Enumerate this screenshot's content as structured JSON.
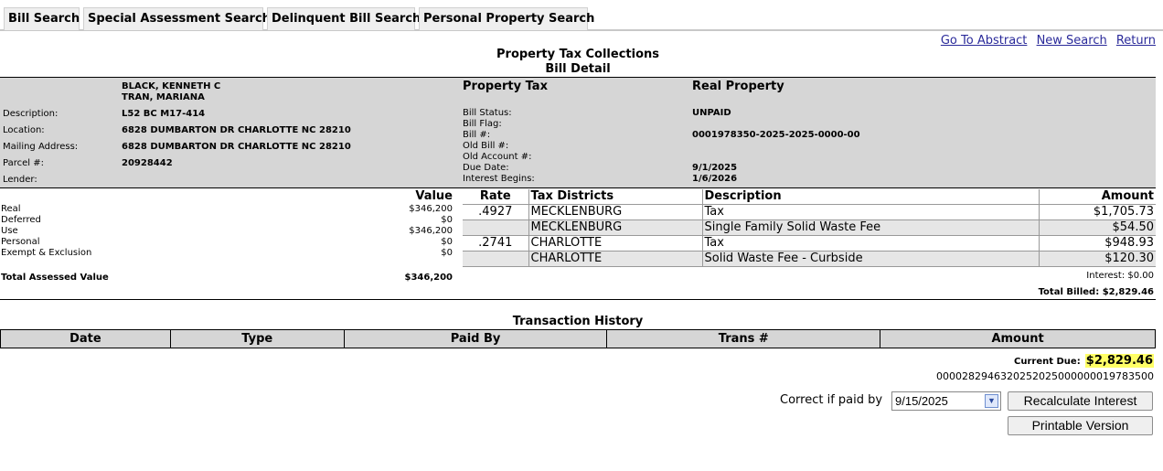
{
  "tabs": [
    "Bill Search",
    "Special Assessment Search",
    "Delinquent Bill Search",
    "Personal Property Search"
  ],
  "top_links": [
    "Go To Abstract",
    "New Search",
    "Return"
  ],
  "title": "Property Tax Collections",
  "subtitle": "Bill Detail",
  "owner": {
    "names": [
      "BLACK, KENNETH C",
      "TRAN, MARIANA"
    ],
    "labels": {
      "description": "Description:",
      "location": "Location:",
      "mailing": "Mailing Address:",
      "parcel": "Parcel #:",
      "lender": "Lender:"
    },
    "description": "L52 BC M17-414",
    "location": "6828 DUMBARTON DR CHARLOTTE NC 28210",
    "mailing": "6828 DUMBARTON DR CHARLOTTE NC 28210",
    "parcel": "20928442",
    "lender": ""
  },
  "bill": {
    "heading_left": "Property Tax",
    "heading_right": "Real Property",
    "labels": {
      "status": "Bill Status:",
      "flag": "Bill Flag:",
      "bill_no": "Bill #:",
      "old_bill": "Old Bill #:",
      "old_account": "Old Account #:",
      "due_date": "Due Date:",
      "interest_begins": "Interest Begins:"
    },
    "status": "UNPAID",
    "bill_no": "0001978350-2025-2025-0000-00",
    "due_date": "9/1/2025",
    "interest_begins": "1/6/2026"
  },
  "values": {
    "header": "Value",
    "rows": [
      {
        "label": "Real",
        "amount": "$346,200"
      },
      {
        "label": "Deferred",
        "amount": "$0"
      },
      {
        "label": "Use",
        "amount": "$346,200"
      },
      {
        "label": "Personal",
        "amount": "$0"
      },
      {
        "label": "Exempt & Exclusion",
        "amount": "$0"
      }
    ],
    "total_label": "Total Assessed Value",
    "total": "$346,200"
  },
  "tax_table": {
    "headers": [
      "Rate",
      "Tax Districts",
      "Description",
      "Amount"
    ],
    "rows": [
      {
        "rate": ".4927",
        "district": "MECKLENBURG",
        "description": "Tax",
        "amount": "$1,705.73"
      },
      {
        "rate": "",
        "district": "MECKLENBURG",
        "description": "Single Family Solid Waste Fee",
        "amount": "$54.50"
      },
      {
        "rate": ".2741",
        "district": "CHARLOTTE",
        "description": "Tax",
        "amount": "$948.93"
      },
      {
        "rate": "",
        "district": "CHARLOTTE",
        "description": "Solid Waste Fee - Curbside",
        "amount": "$120.30"
      }
    ],
    "interest": "Interest: $0.00",
    "total_billed": "Total Billed: $2,829.46"
  },
  "transactions": {
    "title": "Transaction History",
    "headers": [
      "Date",
      "Type",
      "Paid By",
      "Trans #",
      "Amount"
    ]
  },
  "current_due": {
    "label": "Current Due:",
    "value": "$2,829.46"
  },
  "barcode": "0000282946320252025000000019783500",
  "correct": {
    "label": "Correct if paid by",
    "date": "9/15/2025"
  },
  "buttons": {
    "recalc": "Recalculate Interest",
    "print": "Printable Version"
  }
}
